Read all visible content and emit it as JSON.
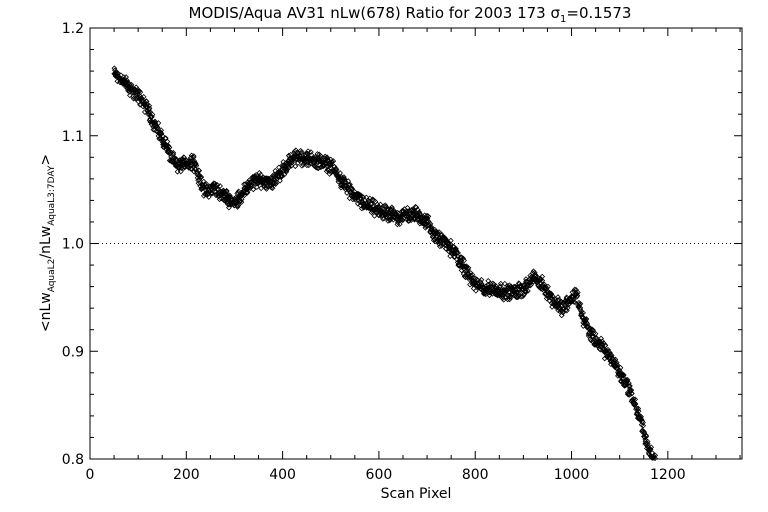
{
  "chart_data": {
    "type": "scatter",
    "title": "MODIS/Aqua AV31 nLw(678) Ratio for 2003 173 σ₁=0.1573",
    "title_parts": {
      "main": "MODIS/Aqua AV31 nLw(678) Ratio for 2003 173 ",
      "sigma": "σ",
      "sigma_sub": "1",
      "sigma_value": "=0.1573"
    },
    "xlabel": "Scan Pixel",
    "ylabel": "<nLwAquaL2/nLwAquaL3:7DAY>",
    "ylabel_parts": {
      "open": "<nLw",
      "sub1": "AquaL2",
      "mid": "/nLw",
      "sub2": "AquaL3:7DAY",
      "close": ">"
    },
    "xlim": [
      0,
      1354
    ],
    "ylim": [
      0.8,
      1.2
    ],
    "x_ticks": [
      0,
      200,
      400,
      600,
      800,
      1000,
      1200
    ],
    "x_tick_labels": [
      "0",
      "200",
      "400",
      "600",
      "800",
      "1000",
      "1200"
    ],
    "y_ticks": [
      0.8,
      0.9,
      1.0,
      1.1,
      1.2
    ],
    "y_tick_labels": [
      "0.8",
      "0.9",
      "1.0",
      "1.1",
      "1.2"
    ],
    "reference_line": {
      "y": 1.0,
      "style": "dotted"
    },
    "marker": "diamond",
    "grid": false,
    "trend": {
      "x": [
        50,
        60,
        80,
        100,
        120,
        140,
        160,
        170,
        180,
        200,
        215,
        225,
        240,
        260,
        280,
        300,
        320,
        340,
        360,
        380,
        400,
        420,
        440,
        460,
        480,
        500,
        520,
        540,
        560,
        580,
        600,
        620,
        640,
        660,
        680,
        700,
        720,
        740,
        760,
        780,
        800,
        820,
        840,
        860,
        880,
        900,
        920,
        940,
        960,
        980,
        1000,
        1010,
        1020,
        1040,
        1060,
        1080,
        1100,
        1120,
        1140,
        1160,
        1175
      ],
      "y": [
        1.158,
        1.155,
        1.145,
        1.138,
        1.125,
        1.105,
        1.09,
        1.078,
        1.072,
        1.075,
        1.077,
        1.062,
        1.048,
        1.052,
        1.043,
        1.038,
        1.048,
        1.058,
        1.058,
        1.058,
        1.068,
        1.079,
        1.08,
        1.078,
        1.076,
        1.072,
        1.06,
        1.048,
        1.04,
        1.035,
        1.03,
        1.027,
        1.025,
        1.027,
        1.027,
        1.02,
        1.005,
        1.0,
        0.99,
        0.975,
        0.962,
        0.958,
        0.958,
        0.955,
        0.955,
        0.958,
        0.968,
        0.962,
        0.948,
        0.94,
        0.948,
        0.955,
        0.935,
        0.915,
        0.905,
        0.895,
        0.88,
        0.865,
        0.84,
        0.81,
        0.795
      ]
    },
    "scatter_spread": 0.006,
    "points_per_pixel_step": 1.6
  }
}
